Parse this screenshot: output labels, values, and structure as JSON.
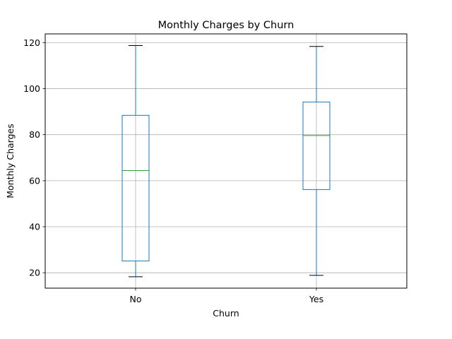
{
  "chart_data": {
    "type": "box",
    "title": "Monthly Charges by Churn",
    "xlabel": "Churn",
    "ylabel": "Monthly Charges",
    "categories": [
      "No",
      "Yes"
    ],
    "boxes": [
      {
        "category": "No",
        "whisker_low": 18.25,
        "q1": 25.1,
        "median": 64.4,
        "q3": 88.4,
        "whisker_high": 118.75
      },
      {
        "category": "Yes",
        "whisker_low": 18.85,
        "q1": 56.15,
        "median": 79.65,
        "q3": 94.2,
        "whisker_high": 118.35
      }
    ],
    "yticks": [
      20,
      40,
      60,
      80,
      100,
      120
    ],
    "ylim": [
      13.3,
      123.8
    ],
    "grid": true,
    "legend": "none",
    "colors": {
      "box": "#1f77b4",
      "median": "#2ca02c",
      "whisker": "#1f77b4",
      "cap": "#000000",
      "grid": "#b0b0b0",
      "axes": "#000000"
    }
  }
}
